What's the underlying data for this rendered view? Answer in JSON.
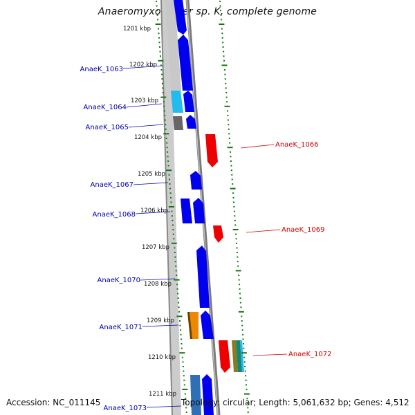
{
  "title": "Anaeromyxobacter sp. K, complete genome",
  "footer": {
    "accession": "Accession: NC_011145",
    "summary": "Topology: circular; Length: 5,061,632 bp; Genes: 4,512"
  },
  "colors": {
    "blue": "#0000ee",
    "red": "#ee0000",
    "cyan": "#22bbee",
    "orange": "#ee8800",
    "gray": "#666666",
    "light_gray": "#c8c8c8",
    "tick_green": "#117711",
    "left_label": "#0000aa",
    "right_label": "#cc0000"
  },
  "kbp_ticks": [
    "1201 kbp",
    "1202 kbp",
    "1203 kbp",
    "1204 kbp",
    "1205 kbp",
    "1206 kbp",
    "1207 kbp",
    "1208 kbp",
    "1209 kbp",
    "1210 kbp",
    "1211 kbp"
  ],
  "genes_left": [
    {
      "label": "AnaeK_1063",
      "color": "blue"
    },
    {
      "label": "AnaeK_1064",
      "color": "cyan"
    },
    {
      "label": "AnaeK_1065",
      "color": "gray"
    },
    {
      "label": "AnaeK_1067",
      "color": "blue"
    },
    {
      "label": "AnaeK_1068",
      "color": "blue"
    },
    {
      "label": "AnaeK_1070",
      "color": "blue"
    },
    {
      "label": "AnaeK_1071",
      "color": "orange"
    },
    {
      "label": "AnaeK_1073",
      "color": "blue"
    }
  ],
  "genes_right": [
    {
      "label": "AnaeK_1066",
      "color": "red"
    },
    {
      "label": "AnaeK_1069",
      "color": "red"
    },
    {
      "label": "AnaeK_1072",
      "color": "red"
    }
  ]
}
